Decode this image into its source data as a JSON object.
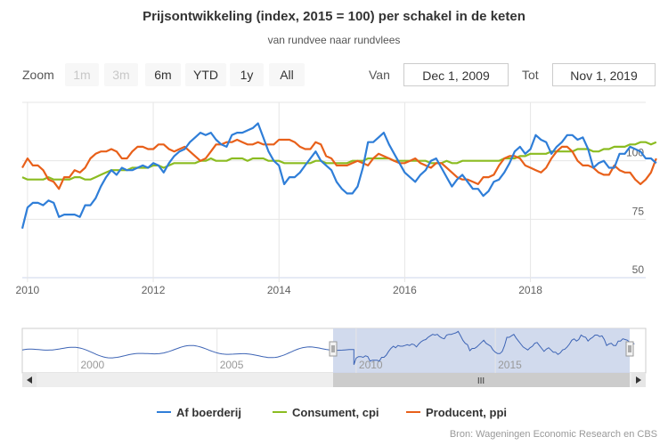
{
  "title": "Prijsontwikkeling (index, 2015 = 100) per schakel in de keten",
  "subtitle": "van rundvee naar rundvlees",
  "range_selector": {
    "zoom_label": "Zoom",
    "buttons": [
      "1m",
      "3m",
      "6m",
      "YTD",
      "1y",
      "All"
    ],
    "from_label": "Van",
    "from_value": "Dec 1, 2009",
    "to_label": "Tot",
    "to_value": "Nov 1, 2019"
  },
  "navigator": {
    "tick_labels": [
      "2000",
      "2005",
      "2010",
      "2015"
    ],
    "scroll_label": "III"
  },
  "credits": "Bron: Wageningen Economic Research en CBS",
  "chart_data": {
    "type": "line",
    "x_start": "2009-12",
    "x_end": "2019-11",
    "x_ticks": [
      "2010",
      "2012",
      "2014",
      "2016",
      "2018"
    ],
    "y_ticks": [
      "50",
      "75",
      "100"
    ],
    "ylim": [
      50,
      125
    ],
    "legend_position": "bottom-center",
    "grid": true,
    "series": [
      {
        "name": "Af boerderij",
        "color": "#2f7ed8",
        "values": [
          71,
          80,
          82,
          82,
          81,
          83,
          82,
          76,
          77,
          77,
          77,
          76,
          81,
          81,
          84,
          89,
          93,
          96,
          94,
          97,
          96,
          96,
          97,
          98,
          97,
          99,
          98,
          95,
          99,
          102,
          104,
          105,
          108,
          110,
          112,
          111,
          112,
          109,
          107,
          106,
          111,
          112,
          112,
          113,
          114,
          116,
          110,
          104,
          100,
          98,
          90,
          93,
          93,
          95,
          98,
          101,
          104,
          100,
          98,
          96,
          91,
          88,
          86,
          86,
          89,
          97,
          108,
          108,
          110,
          112,
          107,
          103,
          99,
          95,
          93,
          91,
          94,
          96,
          100,
          101,
          97,
          93,
          89,
          92,
          94,
          91,
          88,
          88,
          85,
          87,
          91,
          92,
          95,
          99,
          104,
          106,
          103,
          105,
          111,
          109,
          108,
          103,
          106,
          108,
          111,
          111,
          109,
          110,
          105,
          97,
          99,
          100,
          97,
          97,
          103,
          103,
          106,
          105,
          104,
          101,
          101,
          99
        ]
      },
      {
        "name": "Consument, cpi",
        "color": "#8bbc21",
        "values": [
          93,
          92,
          92,
          92,
          92,
          93,
          92,
          92,
          92,
          92,
          93,
          93,
          92,
          92,
          93,
          94,
          95,
          96,
          96,
          96,
          96,
          97,
          97,
          97,
          97,
          98,
          98,
          97,
          98,
          99,
          99,
          99,
          99,
          99,
          100,
          100,
          101,
          100,
          100,
          100,
          101,
          101,
          101,
          100,
          101,
          101,
          101,
          100,
          100,
          100,
          99,
          99,
          99,
          99,
          99,
          99,
          100,
          100,
          99,
          99,
          99,
          99,
          99,
          100,
          100,
          100,
          101,
          101,
          101,
          101,
          101,
          100,
          100,
          100,
          100,
          100,
          100,
          100,
          99,
          99,
          99,
          100,
          99,
          99,
          100,
          100,
          100,
          100,
          100,
          100,
          100,
          100,
          101,
          101,
          101,
          102,
          102,
          103,
          103,
          103,
          103,
          104,
          104,
          104,
          104,
          104,
          105,
          105,
          105,
          104,
          104,
          105,
          105,
          106,
          106,
          106,
          107,
          107,
          108,
          108,
          107,
          108
        ]
      },
      {
        "name": "Producent, ppi",
        "color": "#e8601a",
        "values": [
          97,
          101,
          98,
          98,
          96,
          92,
          91,
          88,
          93,
          93,
          96,
          95,
          97,
          101,
          103,
          104,
          104,
          105,
          104,
          101,
          101,
          104,
          106,
          106,
          105,
          105,
          107,
          107,
          105,
          104,
          105,
          106,
          104,
          102,
          100,
          101,
          104,
          107,
          107,
          108,
          108,
          109,
          108,
          107,
          107,
          108,
          107,
          107,
          107,
          109,
          109,
          109,
          108,
          106,
          105,
          105,
          108,
          107,
          102,
          101,
          98,
          98,
          98,
          99,
          100,
          99,
          98,
          101,
          103,
          102,
          101,
          100,
          99,
          99,
          100,
          101,
          99,
          98,
          97,
          99,
          99,
          97,
          95,
          93,
          92,
          92,
          91,
          90,
          93,
          93,
          94,
          98,
          101,
          102,
          102,
          101,
          98,
          97,
          96,
          95,
          97,
          101,
          104,
          106,
          106,
          104,
          100,
          98,
          98,
          97,
          95,
          94,
          94,
          98,
          96,
          95,
          95,
          92,
          90,
          92,
          95,
          101
        ]
      }
    ]
  }
}
